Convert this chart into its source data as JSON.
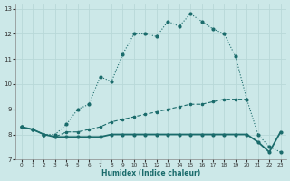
{
  "xlabel": "Humidex (Indice chaleur)",
  "bg_color": "#cce8e8",
  "grid_color": "#b8d8d8",
  "line_color": "#1a6b6b",
  "xlim": [
    -0.5,
    23.5
  ],
  "ylim": [
    7,
    13.2
  ],
  "xticks": [
    0,
    1,
    2,
    3,
    4,
    5,
    6,
    7,
    8,
    9,
    10,
    11,
    12,
    13,
    14,
    15,
    16,
    17,
    18,
    19,
    20,
    21,
    22,
    23
  ],
  "yticks": [
    7,
    8,
    9,
    10,
    11,
    12,
    13
  ],
  "series1_x": [
    0,
    1,
    2,
    3,
    4,
    5,
    6,
    7,
    8,
    9,
    10,
    11,
    12,
    13,
    14,
    15,
    16,
    17,
    18,
    19,
    20,
    21,
    22,
    23
  ],
  "series1_y": [
    8.3,
    8.2,
    8.0,
    8.0,
    8.4,
    9.0,
    9.2,
    10.3,
    10.1,
    11.2,
    12.0,
    12.0,
    11.9,
    12.5,
    12.3,
    12.8,
    12.5,
    12.2,
    12.0,
    11.1,
    9.4,
    8.0,
    7.5,
    7.3
  ],
  "series2_x": [
    0,
    1,
    2,
    3,
    4,
    5,
    6,
    7,
    8,
    9,
    10,
    11,
    12,
    13,
    14,
    15,
    16,
    17,
    18,
    19,
    20,
    21,
    22,
    23
  ],
  "series2_y": [
    8.3,
    8.2,
    8.0,
    7.9,
    7.9,
    7.9,
    7.9,
    7.9,
    8.0,
    8.0,
    8.0,
    8.0,
    8.0,
    8.0,
    8.0,
    8.0,
    8.0,
    8.0,
    8.0,
    8.0,
    8.0,
    7.7,
    7.3,
    8.1
  ],
  "series3_x": [
    0,
    1,
    2,
    3,
    4,
    5,
    6,
    7,
    8,
    9,
    10,
    11,
    12,
    13,
    14,
    15,
    16,
    17,
    18,
    19,
    20
  ],
  "series3_y": [
    8.3,
    8.2,
    8.0,
    7.9,
    8.1,
    8.1,
    8.2,
    8.3,
    8.5,
    8.6,
    8.7,
    8.8,
    8.9,
    9.0,
    9.1,
    9.2,
    9.2,
    9.3,
    9.4,
    9.4,
    9.4
  ],
  "markersize": 2.0,
  "linewidth": 0.8
}
